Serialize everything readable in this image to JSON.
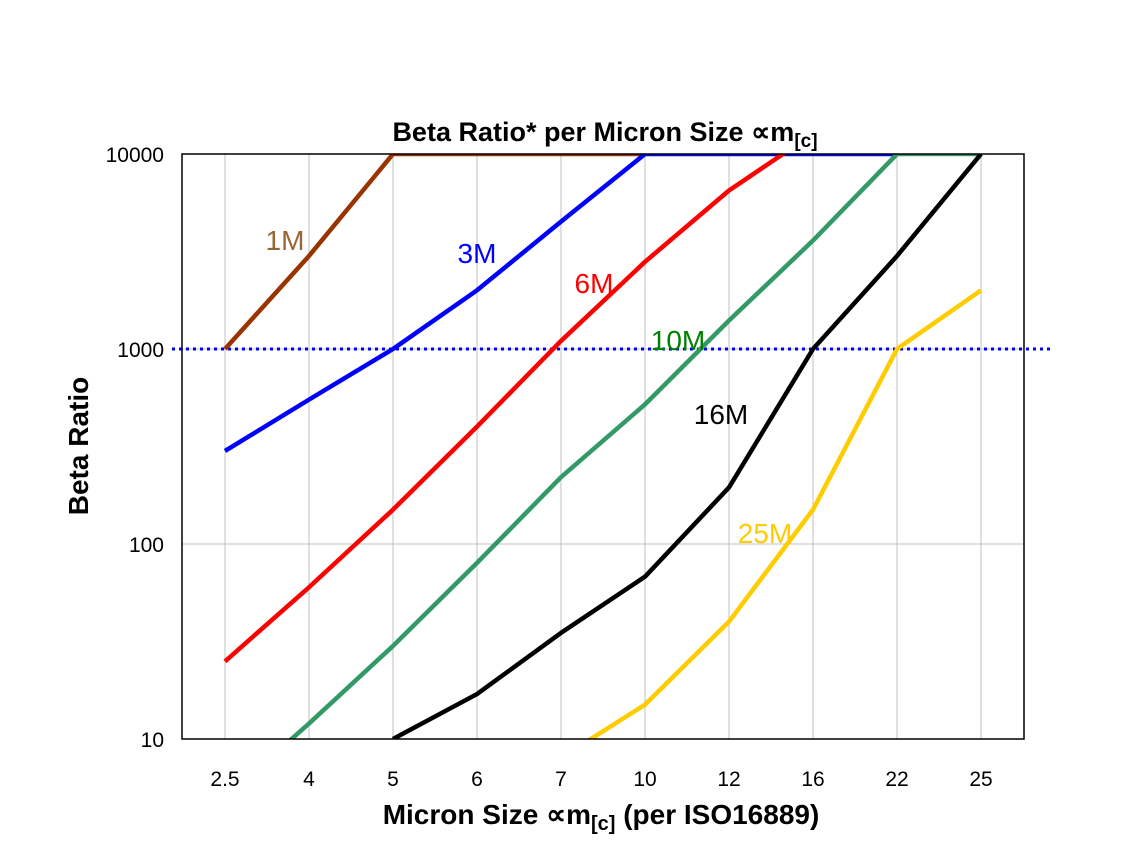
{
  "chart_data": {
    "type": "line",
    "title": "Beta Ratio* per Micron Size ∝m",
    "title_sub": "[c]",
    "xlabel": "Micron Size ∝m",
    "xlabel_sub": "[c]",
    "xlabel_suffix": " (per ISO16889)",
    "ylabel": "Beta Ratio",
    "y_scale": "log",
    "ylim": [
      10,
      10000
    ],
    "yticks": [
      "10",
      "100",
      "1000",
      "10000"
    ],
    "categories": [
      "2.5",
      "4",
      "5",
      "6",
      "7",
      "10",
      "12",
      "16",
      "22",
      "25"
    ],
    "grid": true,
    "reference_line": {
      "value": 1000,
      "style": "dotted",
      "color": "#0000FF"
    },
    "series": [
      {
        "name": "1M",
        "color": "#993300",
        "label_color": "#996633",
        "values": [
          1000,
          3000,
          10000,
          10000,
          10000,
          10000,
          null,
          null,
          null,
          null
        ]
      },
      {
        "name": "3M",
        "color": "#0000FF",
        "label_color": "#0000FF",
        "values": [
          300,
          550,
          1000,
          2000,
          4500,
          10000,
          10000,
          10000,
          10000,
          null
        ]
      },
      {
        "name": "6M",
        "color": "#FF0000",
        "label_color": "#FF0000",
        "values": [
          25,
          60,
          150,
          400,
          1100,
          2800,
          6500,
          12700,
          null,
          null
        ]
      },
      {
        "name": "10M",
        "color": "#339966",
        "label_color": "#008000",
        "values": [
          5,
          12,
          30,
          80,
          220,
          520,
          1400,
          3600,
          10000,
          10000
        ]
      },
      {
        "name": "16M",
        "color": "#000000",
        "label_color": "#000000",
        "values": [
          null,
          null,
          10,
          17,
          35,
          68,
          195,
          1000,
          3000,
          10000
        ]
      },
      {
        "name": "25M",
        "color": "#FFCC00",
        "label_color": "#FFCC00",
        "values": [
          null,
          null,
          null,
          null,
          8,
          15,
          40,
          150,
          1000,
          2000
        ]
      }
    ]
  }
}
